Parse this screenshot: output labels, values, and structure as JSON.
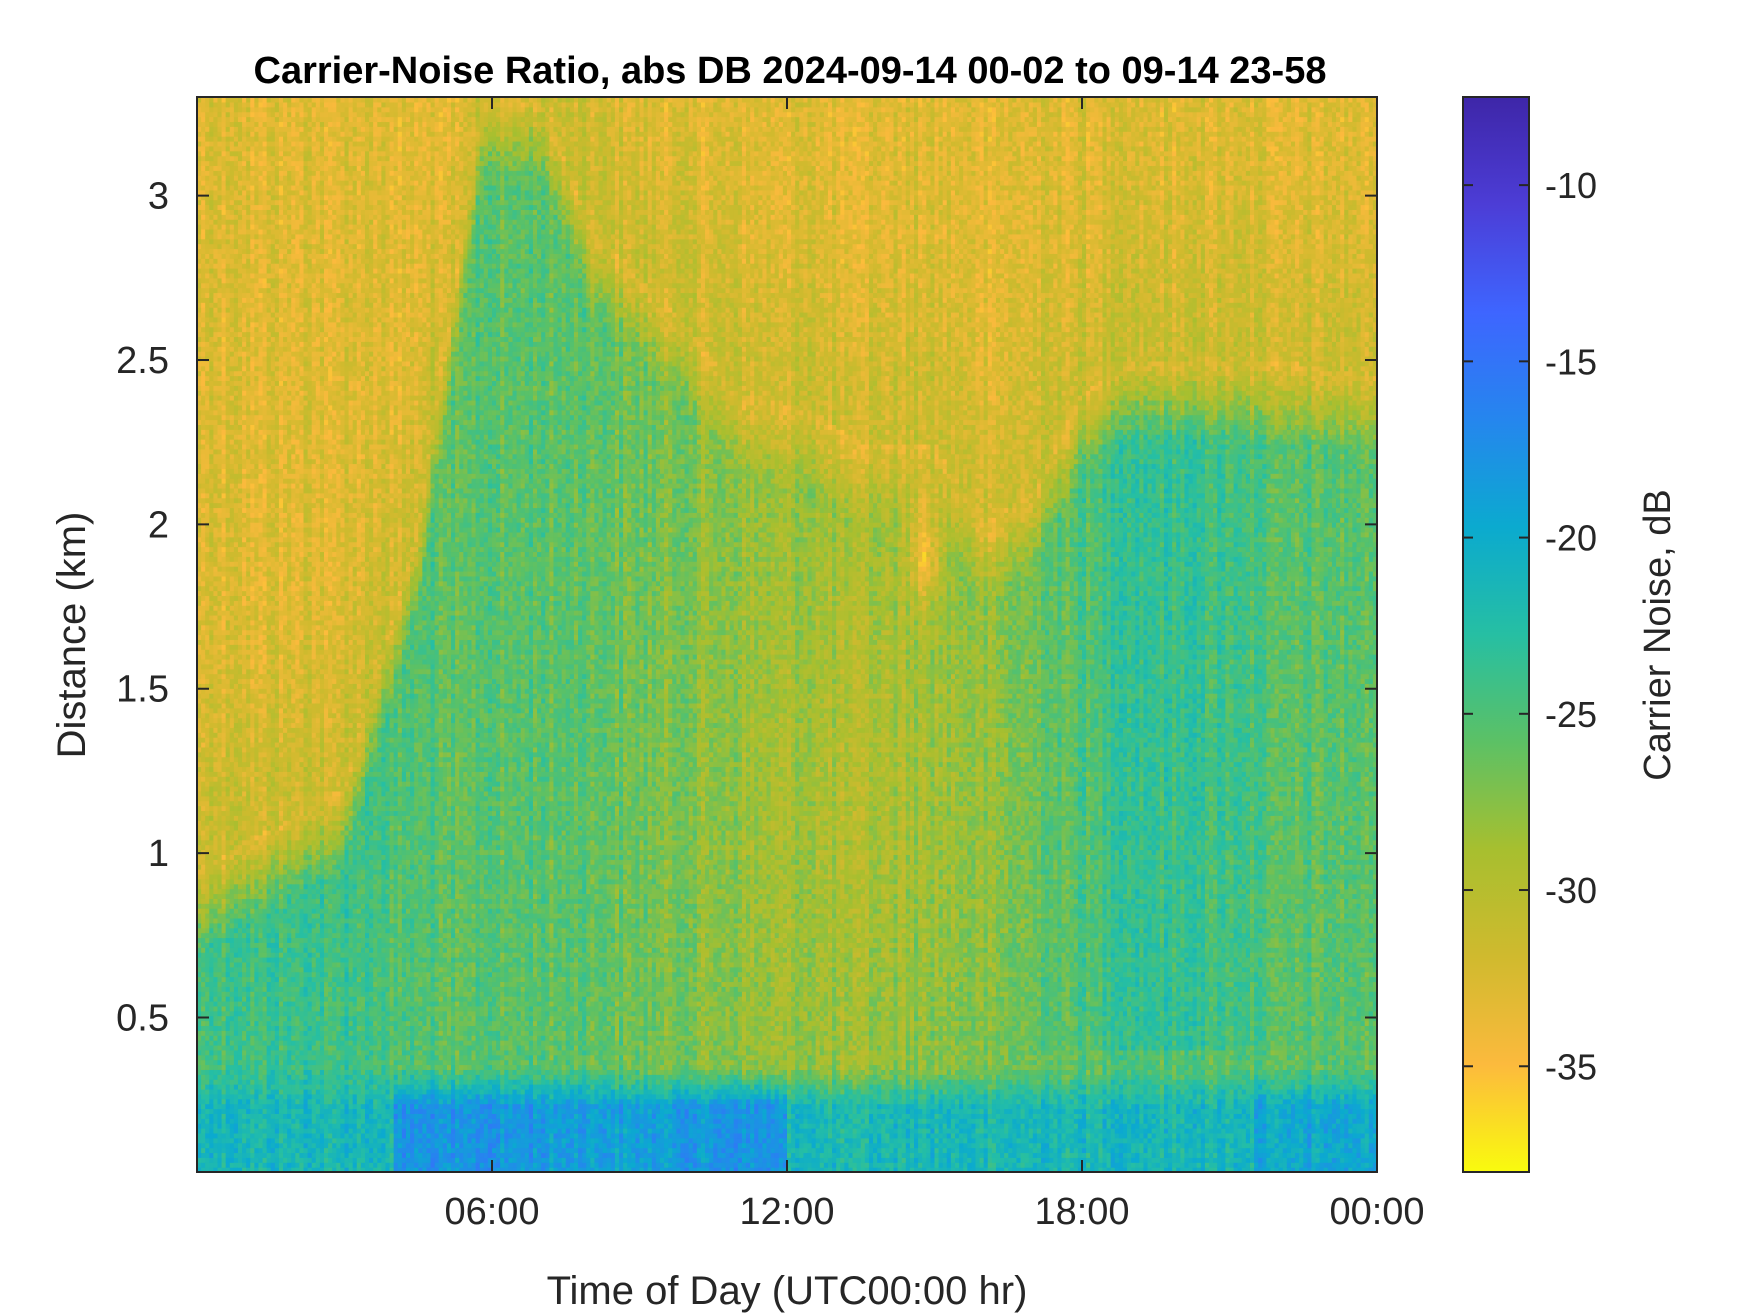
{
  "chart_data": {
    "type": "heatmap",
    "title": "Carrier-Noise Ratio, abs DB 2024-09-14 00-02 to 09-14 23-58",
    "xlabel": "Time of Day (UTC00:00 hr)",
    "ylabel": "Distance (km)",
    "colorbar_label": "Carrier Noise, dB",
    "xlim_hours": [
      0,
      24
    ],
    "ylim": [
      0.03,
      3.3
    ],
    "clim": [
      -38,
      -7.5
    ],
    "colormap": "parula (reversed)",
    "colormap_stops": [
      "#F9FB0E",
      "#FCBA3D",
      "#D0BA2E",
      "#A7BF2F",
      "#5CC165",
      "#26BFA3",
      "#0BAACF",
      "#2586EE",
      "#3E65FF",
      "#4C3DD6",
      "#3E26A8"
    ],
    "x_ticks": [
      {
        "value": 6,
        "label": "06:00"
      },
      {
        "value": 12,
        "label": "12:00"
      },
      {
        "value": 18,
        "label": "18:00"
      },
      {
        "value": 24,
        "label": "00:00"
      }
    ],
    "y_ticks": [
      {
        "value": 0.5,
        "label": "0.5"
      },
      {
        "value": 1,
        "label": "1"
      },
      {
        "value": 1.5,
        "label": "1.5"
      },
      {
        "value": 2,
        "label": "2"
      },
      {
        "value": 2.5,
        "label": "2.5"
      },
      {
        "value": 3,
        "label": "3"
      }
    ],
    "colorbar_ticks": [
      {
        "value": -10,
        "label": "-10"
      },
      {
        "value": -15,
        "label": "-15"
      },
      {
        "value": -20,
        "label": "-20"
      },
      {
        "value": -25,
        "label": "-25"
      },
      {
        "value": -30,
        "label": "-30"
      },
      {
        "value": -35,
        "label": "-35"
      }
    ],
    "grid": false,
    "description_of_field": {
      "background_value": -33,
      "mixing_layer_top_km_by_hour": [
        [
          0,
          0.95
        ],
        [
          3,
          1.2
        ],
        [
          4.5,
          2.0
        ],
        [
          5.8,
          3.3
        ],
        [
          7,
          3.3
        ],
        [
          8,
          2.9
        ],
        [
          9,
          2.75
        ],
        [
          10,
          2.6
        ],
        [
          11,
          2.4
        ],
        [
          12.5,
          2.35
        ],
        [
          13.5,
          2.25
        ],
        [
          15,
          2.25
        ],
        [
          16,
          2.0
        ],
        [
          17,
          2.1
        ],
        [
          18,
          2.4
        ],
        [
          19,
          2.5
        ],
        [
          20.5,
          2.5
        ],
        [
          22,
          2.5
        ],
        [
          24,
          2.45
        ]
      ],
      "near_surface_layer_top_km": 0.35
    }
  }
}
